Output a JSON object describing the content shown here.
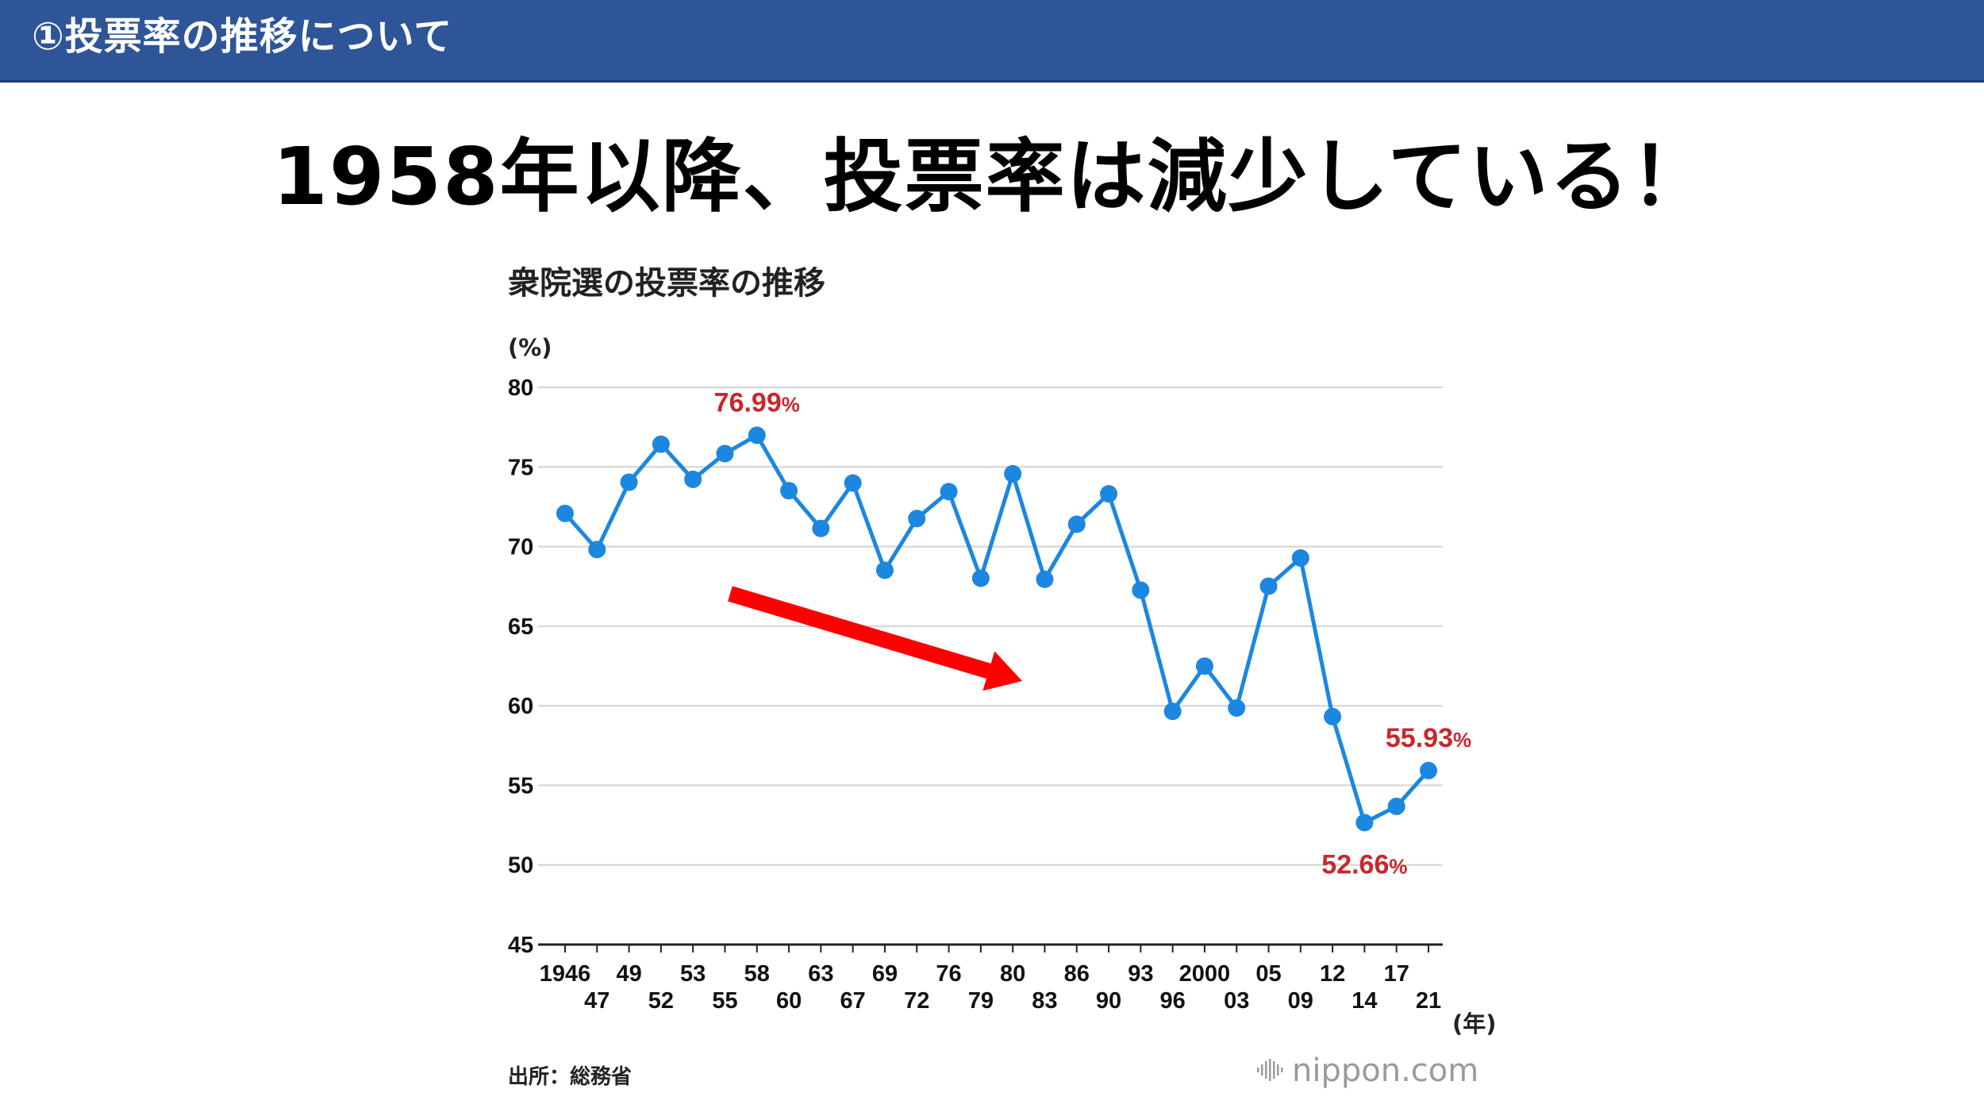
{
  "header": {
    "title": "①投票率の推移について"
  },
  "headline": "1958年以降、投票率は減少している！",
  "chart_data": {
    "type": "line",
    "title": "衆院選の投票率の推移",
    "ylabel": "(%)",
    "xlabel": "(年)",
    "ylim": [
      45,
      80
    ],
    "yticks": [
      80,
      75,
      70,
      65,
      60,
      55,
      50,
      45
    ],
    "grid": true,
    "x": [
      "1946",
      "47",
      "49",
      "52",
      "53",
      "55",
      "58",
      "60",
      "63",
      "67",
      "69",
      "72",
      "76",
      "79",
      "80",
      "83",
      "86",
      "90",
      "93",
      "96",
      "2000",
      "03",
      "05",
      "09",
      "12",
      "14",
      "17",
      "21"
    ],
    "x_label_rows": [
      0,
      1,
      0,
      1,
      0,
      1,
      0,
      1,
      0,
      1,
      0,
      1,
      0,
      1,
      0,
      1,
      0,
      1,
      0,
      1,
      0,
      1,
      0,
      1,
      0,
      1,
      0,
      1
    ],
    "series": [
      {
        "values": [
          72.08,
          69.81,
          74.04,
          76.43,
          74.22,
          75.84,
          76.99,
          73.51,
          71.14,
          73.99,
          68.51,
          71.76,
          73.45,
          68.01,
          74.57,
          67.94,
          71.4,
          73.31,
          67.26,
          59.65,
          62.49,
          59.86,
          67.51,
          69.28,
          59.32,
          52.66,
          53.68,
          55.93
        ]
      }
    ],
    "annotations": [
      {
        "index": 6,
        "text": "76.99",
        "unit": "%"
      },
      {
        "index": 27,
        "text": "55.93",
        "unit": "%"
      },
      {
        "index": 25,
        "text": "52.66",
        "unit": "%"
      }
    ],
    "line_color": "#1b87e0",
    "trend_arrow_color": "#ff0000",
    "annotation_color": "#c8282d",
    "source": "出所：総務省",
    "brand": {
      "name": "nippon",
      "suffix": ".com"
    }
  }
}
